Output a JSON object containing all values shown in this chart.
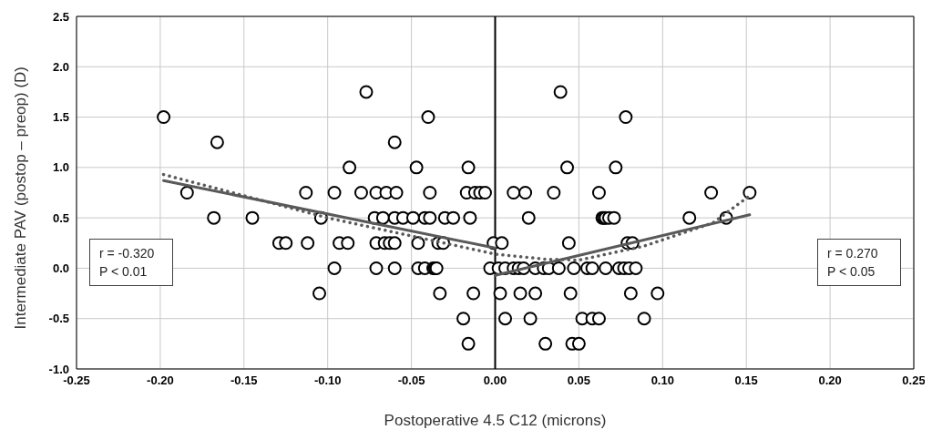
{
  "chart_data": {
    "type": "scatter",
    "xlabel": "Postoperative 4.5 C12 (microns)",
    "ylabel": "Intermediate PAV (postop – preop) (D)",
    "xlim": [
      -0.25,
      0.25
    ],
    "xticks": [
      {
        "value": -0.25,
        "label": "-0.25"
      },
      {
        "value": -0.2,
        "label": "-0.20"
      },
      {
        "value": -0.15,
        "label": "-0.15"
      },
      {
        "value": -0.1,
        "label": "-0.10"
      },
      {
        "value": -0.05,
        "label": "-0.05"
      },
      {
        "value": 0,
        "label": "0.00"
      },
      {
        "value": 0.05,
        "label": "0.05"
      },
      {
        "value": 0.1,
        "label": "0.10"
      },
      {
        "value": 0.15,
        "label": "0.15"
      },
      {
        "value": 0.2,
        "label": "0.20"
      },
      {
        "value": 0.25,
        "label": "0.25"
      }
    ],
    "ylim": [
      -1,
      2.5
    ],
    "yticks": [
      {
        "value": -1,
        "label": "-1.0"
      },
      {
        "value": -0.5,
        "label": "-0.5"
      },
      {
        "value": 0,
        "label": "0.0"
      },
      {
        "value": 0.5,
        "label": "0.5"
      },
      {
        "value": 1,
        "label": "1.0"
      },
      {
        "value": 1.5,
        "label": "1.5"
      },
      {
        "value": 2,
        "label": "2.0"
      },
      {
        "value": 2.5,
        "label": "2.5"
      }
    ],
    "grid": true,
    "ref_lines": [
      {
        "axis": "x",
        "value": 0,
        "color": "#000000"
      }
    ],
    "annotations": [
      "r = -0.320\nP < 0.01",
      "r = 0.270\nP < 0.05"
    ],
    "series": [
      {
        "color": "#000000",
        "marker": "circle",
        "x": [
          -0.198,
          -0.04,
          0.078,
          -0.077,
          0.039,
          -0.166,
          -0.06,
          -0.087,
          -0.047,
          -0.016,
          0.043,
          0.072,
          -0.184,
          -0.113,
          -0.096,
          -0.08,
          -0.071,
          -0.065,
          -0.059,
          -0.039,
          -0.017,
          -0.012,
          -0.009,
          -0.006,
          0.011,
          0.018,
          0.035,
          0.062,
          0.129,
          0.152,
          -0.168,
          -0.145,
          -0.104,
          -0.072,
          -0.067,
          -0.06,
          -0.055,
          -0.049,
          -0.042,
          -0.039,
          -0.03,
          -0.025,
          -0.015,
          0.02,
          0.064,
          0.065,
          0.066,
          0.068,
          0.071,
          0.116,
          0.138,
          -0.129,
          -0.125,
          -0.112,
          -0.093,
          -0.088,
          -0.071,
          -0.066,
          -0.063,
          -0.06,
          -0.046,
          -0.034,
          -0.031,
          -0.001,
          0.004,
          0.044,
          0.079,
          0.082,
          -0.096,
          -0.071,
          -0.06,
          -0.046,
          -0.042,
          -0.037,
          -0.036,
          -0.035,
          -0.003,
          0.002,
          0.006,
          0.011,
          0.014,
          0.017,
          0.024,
          0.029,
          0.032,
          0.038,
          0.047,
          0.055,
          0.058,
          0.066,
          0.074,
          0.077,
          0.08,
          0.084,
          -0.105,
          -0.033,
          -0.013,
          0.003,
          0.015,
          0.024,
          0.045,
          0.081,
          0.097,
          -0.019,
          0.006,
          0.021,
          0.052,
          0.058,
          0.062,
          0.089,
          -0.016,
          0.03,
          0.046,
          0.05
        ],
        "values": [
          1.5,
          1.5,
          1.5,
          1.75,
          1.75,
          1.25,
          1.25,
          1,
          1,
          1,
          1,
          1,
          0.75,
          0.75,
          0.75,
          0.75,
          0.75,
          0.75,
          0.75,
          0.75,
          0.75,
          0.75,
          0.75,
          0.75,
          0.75,
          0.75,
          0.75,
          0.75,
          0.75,
          0.75,
          0.5,
          0.5,
          0.5,
          0.5,
          0.5,
          0.5,
          0.5,
          0.5,
          0.5,
          0.5,
          0.5,
          0.5,
          0.5,
          0.5,
          0.5,
          0.5,
          0.5,
          0.5,
          0.5,
          0.5,
          0.5,
          0.25,
          0.25,
          0.25,
          0.25,
          0.25,
          0.25,
          0.25,
          0.25,
          0.25,
          0.25,
          0.25,
          0.25,
          0.25,
          0.25,
          0.25,
          0.25,
          0.25,
          0,
          0,
          0,
          0,
          0,
          0,
          0,
          0,
          0,
          0,
          0,
          0,
          0,
          0,
          0,
          0,
          0,
          0,
          0,
          0,
          0,
          0,
          0,
          0,
          0,
          0,
          -0.25,
          -0.25,
          -0.25,
          -0.25,
          -0.25,
          -0.25,
          -0.25,
          -0.25,
          -0.25,
          -0.5,
          -0.5,
          -0.5,
          -0.5,
          -0.5,
          -0.5,
          -0.5,
          -0.75,
          -0.75,
          -0.75,
          -0.75
        ]
      },
      {
        "type": "line",
        "color": "#595959",
        "line_style": "solid",
        "marker": "none",
        "x": [
          -0.198,
          0.0
        ],
        "values": [
          0.87,
          0.2
        ]
      },
      {
        "type": "line",
        "color": "#595959",
        "line_style": "solid",
        "marker": "none",
        "x": [
          0.0,
          0.152
        ],
        "values": [
          -0.07,
          0.53
        ]
      },
      {
        "type": "line",
        "color": "#595959",
        "line_style": "dotted",
        "marker": "none",
        "x": [
          -0.198,
          -0.15,
          -0.1,
          -0.05,
          0,
          0.03,
          0.05,
          0.089,
          0.13,
          0.152
        ],
        "values": [
          0.93,
          0.72,
          0.5,
          0.32,
          0.14,
          0.09,
          0.08,
          0.22,
          0.45,
          0.72
        ]
      }
    ]
  }
}
